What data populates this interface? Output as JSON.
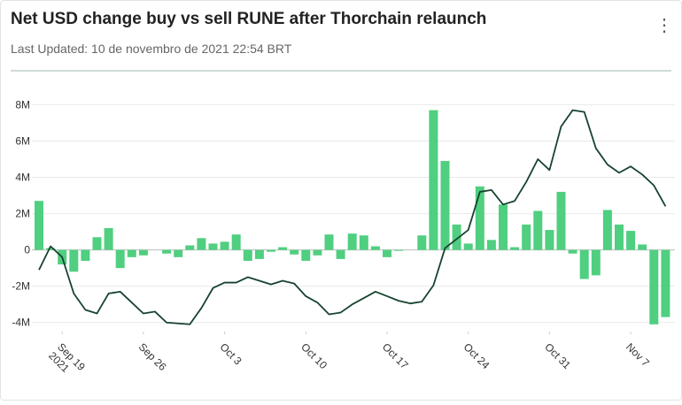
{
  "title": "Net USD change buy vs sell RUNE after Thorchain relaunch",
  "subtitle": "Last Updated: 10 de novembro de 2021 22:54 BRT",
  "menu_icon": "⋮",
  "chart_data": {
    "type": "bar_line",
    "x": [
      "2021-09-17",
      "2021-09-18",
      "2021-09-19",
      "2021-09-20",
      "2021-09-21",
      "2021-09-22",
      "2021-09-23",
      "2021-09-24",
      "2021-09-25",
      "2021-09-26",
      "2021-09-27",
      "2021-09-28",
      "2021-09-29",
      "2021-09-30",
      "2021-10-01",
      "2021-10-02",
      "2021-10-03",
      "2021-10-04",
      "2021-10-05",
      "2021-10-06",
      "2021-10-07",
      "2021-10-08",
      "2021-10-09",
      "2021-10-10",
      "2021-10-11",
      "2021-10-12",
      "2021-10-13",
      "2021-10-14",
      "2021-10-15",
      "2021-10-16",
      "2021-10-17",
      "2021-10-18",
      "2021-10-19",
      "2021-10-20",
      "2021-10-21",
      "2021-10-22",
      "2021-10-23",
      "2021-10-24",
      "2021-10-25",
      "2021-10-26",
      "2021-10-27",
      "2021-10-28",
      "2021-10-29",
      "2021-10-30",
      "2021-10-31",
      "2021-11-01",
      "2021-11-02",
      "2021-11-03",
      "2021-11-04",
      "2021-11-05",
      "2021-11-06",
      "2021-11-07",
      "2021-11-08",
      "2021-11-09",
      "2021-11-10"
    ],
    "series": [
      {
        "kind": "bar",
        "color": "#4fcf7f",
        "values": [
          2700000,
          100000,
          -800000,
          -1200000,
          -600000,
          700000,
          1200000,
          -1000000,
          -400000,
          -300000,
          0,
          -200000,
          -400000,
          250000,
          650000,
          350000,
          450000,
          850000,
          -600000,
          -500000,
          -100000,
          150000,
          -250000,
          -600000,
          -300000,
          850000,
          -500000,
          900000,
          800000,
          200000,
          -400000,
          -50000,
          0,
          800000,
          7700000,
          4900000,
          1400000,
          350000,
          3500000,
          550000,
          2500000,
          150000,
          1400000,
          2150000,
          1100000,
          3200000,
          -200000,
          -1600000,
          -1400000,
          2200000,
          1400000,
          1050000,
          300000,
          -4100000,
          -3700000
        ]
      },
      {
        "kind": "line",
        "color": "#17432f",
        "values": [
          -1100000,
          200000,
          -400000,
          -2400000,
          -3300000,
          -3500000,
          -2400000,
          -2300000,
          -2900000,
          -3500000,
          -3400000,
          -4000000,
          -4050000,
          -4100000,
          -3200000,
          -2100000,
          -1800000,
          -1800000,
          -1500000,
          -1700000,
          -1900000,
          -1700000,
          -1850000,
          -2550000,
          -2900000,
          -3550000,
          -3450000,
          -3000000,
          -2650000,
          -2300000,
          -2550000,
          -2800000,
          -2950000,
          -2850000,
          -1950000,
          100000,
          600000,
          1100000,
          3200000,
          3300000,
          2500000,
          2700000,
          3750000,
          5000000,
          4400000,
          6800000,
          7700000,
          7600000,
          5600000,
          4700000,
          4250000,
          4600000,
          4150000,
          3550000,
          2400000
        ]
      }
    ],
    "ylim": [
      -4500000,
      8800000
    ],
    "yticks": [
      {
        "value": -4000000,
        "label": "-4M"
      },
      {
        "value": -2000000,
        "label": "-2M"
      },
      0,
      {
        "value": 2000000,
        "label": "2M"
      },
      {
        "value": 4000000,
        "label": "4M"
      },
      {
        "value": 6000000,
        "label": "6M"
      },
      {
        "value": 8000000,
        "label": "8M"
      }
    ],
    "xticks": [
      {
        "value": "2021-09-19",
        "label": "Sep 19"
      },
      {
        "value": "2021-09-26",
        "label": "Sep 26"
      },
      {
        "value": "2021-10-03",
        "label": "Oct 3"
      },
      {
        "value": "2021-10-10",
        "label": "Oct 10"
      },
      {
        "value": "2021-10-17",
        "label": "Oct 17"
      },
      {
        "value": "2021-10-24",
        "label": "Oct 24"
      },
      {
        "value": "2021-10-31",
        "label": "Oct 31"
      },
      {
        "value": "2021-11-07",
        "label": "Nov 7"
      }
    ],
    "year_label": "2021",
    "grid": true
  }
}
